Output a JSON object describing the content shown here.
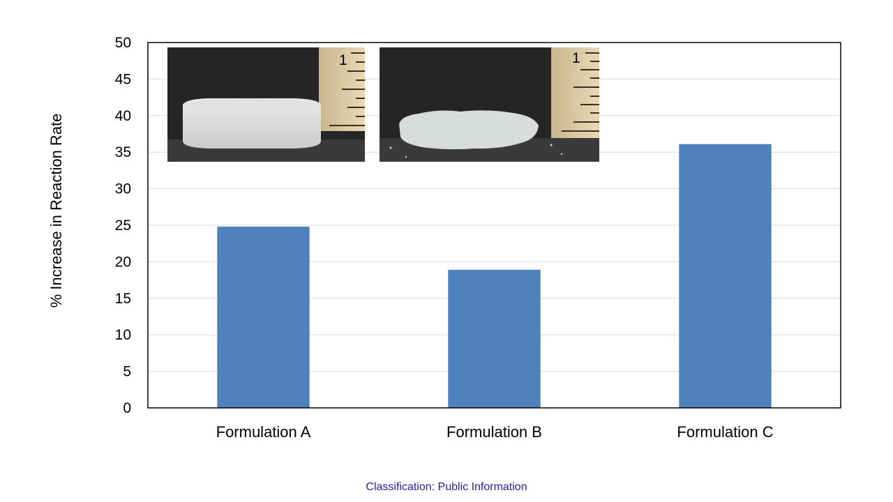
{
  "chart_data": {
    "type": "bar",
    "categories": [
      "Formulation A",
      "Formulation B",
      "Formulation C"
    ],
    "values": [
      24.8,
      18.9,
      36.1
    ],
    "title": "",
    "xlabel": "",
    "ylabel": "% Increase in Reaction Rate",
    "ylim": [
      0,
      50
    ],
    "yticks": [
      0,
      5,
      10,
      15,
      20,
      25,
      30,
      35,
      40,
      45,
      50
    ],
    "grid": true,
    "legend": "none",
    "bar_color": "#4f81bd",
    "grid_color": "#d9d9d9"
  },
  "insets": {
    "left_photo_icon": "intact-disc-photo",
    "right_photo_icon": "crumbled-disc-photo",
    "ruler_marking": "1"
  },
  "footer": {
    "text": "Classification: Public Information",
    "color": "#1f1f9f"
  }
}
